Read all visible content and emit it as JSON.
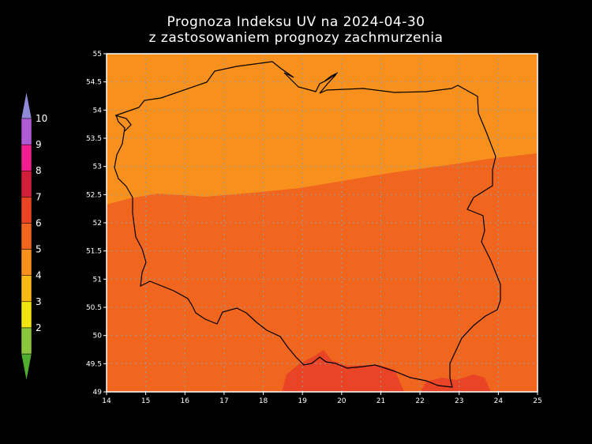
{
  "title": {
    "line1": "Prognoza Indeksu UV na 2024-04-30",
    "line2": "z zastosowaniem prognozy zachmurzenia"
  },
  "map": {
    "lon_ticks": [
      "14",
      "15",
      "16",
      "17",
      "18",
      "19",
      "20",
      "21",
      "22",
      "23",
      "24",
      "25"
    ],
    "lat_ticks": [
      "49",
      "49.5",
      "50",
      "50.5",
      "51",
      "51.5",
      "52",
      "52.5",
      "53",
      "53.5",
      "54",
      "54.5",
      "55"
    ],
    "lon_range": [
      14,
      25
    ],
    "lat_range": [
      49,
      55
    ],
    "grid": true,
    "region_colors": {
      "uv5": "#f7901c",
      "uv6": "#f0661f",
      "uv7": "#e84425"
    }
  },
  "legend": {
    "levels": [
      {
        "label": "2",
        "color": "#8cc63f"
      },
      {
        "label": "3",
        "color": "#f0e512"
      },
      {
        "label": "4",
        "color": "#f9b914"
      },
      {
        "label": "5",
        "color": "#f7901c"
      },
      {
        "label": "6",
        "color": "#f0661f"
      },
      {
        "label": "7",
        "color": "#e84425"
      },
      {
        "label": "8",
        "color": "#d11f3a"
      },
      {
        "label": "9",
        "color": "#f01e8e"
      },
      {
        "label": "10",
        "color": "#b05bd6"
      }
    ],
    "low_arrow_color": "#4fae2f",
    "high_arrow_color": "#8f8ad8"
  }
}
